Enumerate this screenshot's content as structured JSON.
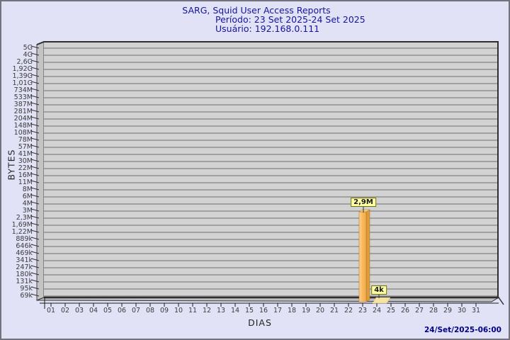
{
  "header": {
    "title": "SARG, Squid User Access Reports",
    "period": "Período: 23 Set 2025-24 Set 2025",
    "user": "Usuário: 192.168.0.111",
    "title_color": "#14149E"
  },
  "footer": {
    "timestamp": "24/Set/2025-06:00"
  },
  "colors": {
    "page_bg": "#E2E2F7",
    "page_border": "#73737F",
    "panel_bg": "#D2D2D2",
    "wall_bg": "#C4C4C4",
    "floor_bg": "#BEBEBE",
    "gridline": "#6F6F6F",
    "panel_edge": "#2F2F2F",
    "bar_front": "#F8B254",
    "bar_front_highlight": "#FDD08E",
    "bar_side": "#DC9B3E",
    "bar_top": "#FCD28C",
    "bar_outline": "#A87420",
    "bar_flat": "#F5E3A3",
    "value_label_bg": "#FFFFA6",
    "timestamp_color": "#00008B"
  },
  "chart_data": {
    "type": "bar",
    "title": "SARG, Squid User Access Reports",
    "subtitle1": "Período: 23 Set 2025-24 Set 2025",
    "subtitle2": "Usuário: 192.168.0.111",
    "xlabel": "DIAS",
    "ylabel": "BYTES",
    "scale": "log",
    "grid": "horizontal",
    "categories": [
      "01",
      "02",
      "03",
      "04",
      "05",
      "06",
      "07",
      "08",
      "09",
      "10",
      "11",
      "12",
      "13",
      "14",
      "15",
      "16",
      "17",
      "18",
      "19",
      "20",
      "21",
      "22",
      "23",
      "24",
      "25",
      "26",
      "27",
      "28",
      "29",
      "30",
      "31"
    ],
    "y_tick_labels": [
      "5G",
      "4G",
      "2,6G",
      "1,92G",
      "1,39G",
      "1,01G",
      "734M",
      "533M",
      "387M",
      "281M",
      "204M",
      "148M",
      "108M",
      "78M",
      "57M",
      "41M",
      "30M",
      "22M",
      "16M",
      "11M",
      "8M",
      "6M",
      "4M",
      "3M",
      "2,3M",
      "1,69M",
      "1,22M",
      "889k",
      "646k",
      "469k",
      "341k",
      "247k",
      "180k",
      "131k",
      "95k",
      "69k"
    ],
    "ylim_labels": [
      "69k",
      "5G"
    ],
    "bars": [
      {
        "x": "23",
        "value_label": "2,9M",
        "value_bytes": 2900000
      },
      {
        "x": "24",
        "value_label": "4k",
        "value_bytes": 4000
      }
    ]
  }
}
